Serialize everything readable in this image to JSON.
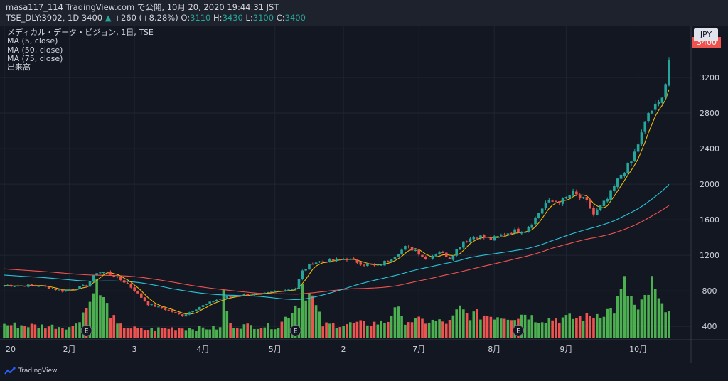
{
  "header": {
    "line1": "masa117_114 TradingView.com で公開, 10月 20, 2020 19:44:31 JST",
    "symbol": "TSE_DLY:3902, 1D",
    "last": "3400",
    "arrow": "▲",
    "change": "+260 (+8.28%)",
    "o_label": "O:",
    "o_value": "3110",
    "h_label": "H:",
    "h_value": "3430",
    "l_label": "L:",
    "l_value": "3100",
    "c_label": "C:",
    "c_value": "3400"
  },
  "legend": {
    "title": "メディカル・データ・ビジョン, 1日, TSE",
    "ma5": "MA (5, close)",
    "ma50": "MA (50, close)",
    "ma75": "MA (75, close)",
    "volume": "出来高"
  },
  "price_axis": {
    "currency": "JPY",
    "last_price_tag": "3400"
  },
  "footer": {
    "brand": "TradingView"
  },
  "colors": {
    "background": "#131722",
    "up": "#26a69a",
    "down": "#ef5350",
    "ma5": "#f0b90b",
    "ma50": "#26c6da",
    "ma75": "#ef5350",
    "vol_up": "#4caf50",
    "vol_down": "#ef5350"
  },
  "chart_data": {
    "type": "candlestick",
    "title": "メディカル・データ・ビジョン, 1日, TSE",
    "ylim": [
      250,
      3560
    ],
    "yticks": [
      400,
      800,
      1200,
      1600,
      2000,
      2400,
      2800,
      3200
    ],
    "x_tick_labels": [
      {
        "label": "20",
        "index": 0
      },
      {
        "label": "2月",
        "index": 19
      },
      {
        "label": "3",
        "index": 38
      },
      {
        "label": "4月",
        "index": 58
      },
      {
        "label": "5月",
        "index": 79
      },
      {
        "label": "2",
        "index": 99
      },
      {
        "label": "7月",
        "index": 121
      },
      {
        "label": "8月",
        "index": 143
      },
      {
        "label": "9月",
        "index": 164
      },
      {
        "label": "10月",
        "index": 185
      }
    ],
    "earnings_markers": [
      {
        "label": "E",
        "index": 24
      },
      {
        "label": "E",
        "index": 85
      },
      {
        "label": "E",
        "index": 150
      }
    ],
    "close_keyframes": [
      [
        0,
        860
      ],
      [
        10,
        860
      ],
      [
        17,
        800
      ],
      [
        24,
        860
      ],
      [
        27,
        1010
      ],
      [
        30,
        1010
      ],
      [
        36,
        880
      ],
      [
        42,
        650
      ],
      [
        48,
        580
      ],
      [
        52,
        520
      ],
      [
        57,
        620
      ],
      [
        62,
        700
      ],
      [
        65,
        730
      ],
      [
        70,
        760
      ],
      [
        75,
        760
      ],
      [
        80,
        800
      ],
      [
        85,
        830
      ],
      [
        87,
        1020
      ],
      [
        90,
        1120
      ],
      [
        95,
        1140
      ],
      [
        100,
        1160
      ],
      [
        105,
        1100
      ],
      [
        109,
        1080
      ],
      [
        113,
        1170
      ],
      [
        117,
        1290
      ],
      [
        120,
        1260
      ],
      [
        123,
        1160
      ],
      [
        127,
        1240
      ],
      [
        130,
        1170
      ],
      [
        134,
        1360
      ],
      [
        138,
        1420
      ],
      [
        142,
        1380
      ],
      [
        145,
        1420
      ],
      [
        148,
        1470
      ],
      [
        152,
        1480
      ],
      [
        155,
        1620
      ],
      [
        158,
        1790
      ],
      [
        163,
        1820
      ],
      [
        166,
        1900
      ],
      [
        170,
        1800
      ],
      [
        172,
        1660
      ],
      [
        176,
        1830
      ],
      [
        180,
        2110
      ],
      [
        183,
        2250
      ],
      [
        186,
        2560
      ],
      [
        188,
        2800
      ],
      [
        191,
        2900
      ],
      [
        193,
        3140
      ],
      [
        194,
        3400
      ]
    ],
    "ma50_start": 980,
    "ma75_start": 1050,
    "volume_keyframes": [
      [
        0,
        300
      ],
      [
        20,
        250
      ],
      [
        25,
        780
      ],
      [
        26,
        1300
      ],
      [
        29,
        820
      ],
      [
        33,
        280
      ],
      [
        40,
        190
      ],
      [
        50,
        230
      ],
      [
        63,
        220
      ],
      [
        64,
        1000
      ],
      [
        66,
        280
      ],
      [
        80,
        260
      ],
      [
        86,
        820
      ],
      [
        87,
        1200
      ],
      [
        90,
        850
      ],
      [
        93,
        290
      ],
      [
        100,
        310
      ],
      [
        110,
        340
      ],
      [
        112,
        380
      ],
      [
        114,
        750
      ],
      [
        116,
        400
      ],
      [
        130,
        350
      ],
      [
        133,
        640
      ],
      [
        135,
        520
      ],
      [
        150,
        480
      ],
      [
        152,
        560
      ],
      [
        155,
        420
      ],
      [
        165,
        440
      ],
      [
        170,
        460
      ],
      [
        174,
        560
      ],
      [
        178,
        640
      ],
      [
        181,
        1150
      ],
      [
        185,
        560
      ],
      [
        189,
        1150
      ],
      [
        192,
        620
      ],
      [
        193,
        760
      ],
      [
        194,
        740
      ]
    ]
  }
}
